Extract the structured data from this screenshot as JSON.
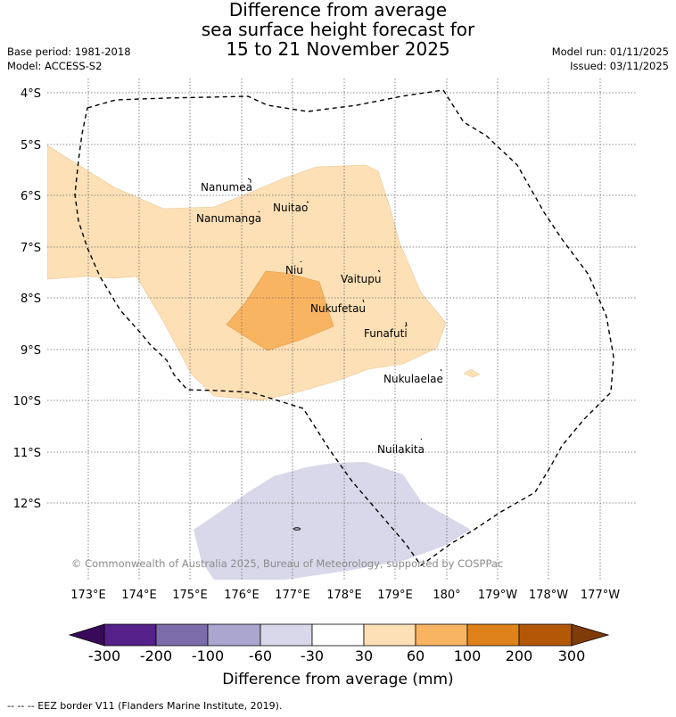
{
  "header": {
    "title_lines": [
      "Difference from average",
      "sea surface height forecast for",
      "15 to 21 November 2025"
    ],
    "base_period": "Base period: 1981-2018",
    "model": "Model: ACCESS-S2",
    "model_run": "Model run: 01/11/2025",
    "issued": "Issued: 03/11/2025"
  },
  "map": {
    "lat_labels": [
      "4°S",
      "5°S",
      "6°S",
      "7°S",
      "8°S",
      "9°S",
      "10°S",
      "11°S",
      "12°S"
    ],
    "lon_labels": [
      "173°E",
      "174°E",
      "175°E",
      "176°E",
      "177°E",
      "178°E",
      "179°E",
      "180°",
      "179°W",
      "178°W",
      "177°W"
    ],
    "islands": [
      "Nanumea",
      "Nuitao",
      "Nanumanga",
      "Niu",
      "Vaitupu",
      "Nukufetau",
      "Funafuti",
      "Nukulaelae",
      "Nuilakita"
    ],
    "copyright": "© Commonwealth of Australia 2025, Bureau of Meteorology, supported by COSPPac"
  },
  "colorbar": {
    "tick_labels": [
      "-300",
      "-200",
      "-100",
      "-60",
      "-30",
      "30",
      "60",
      "100",
      "200",
      "300"
    ],
    "title": "Difference from average (mm)",
    "colors": [
      "#3a0a5a",
      "#54208a",
      "#7d6caa",
      "#aba6cf",
      "#d8d8ea",
      "#ffffff",
      "#fde0b6",
      "#f9b462",
      "#e0821a",
      "#b35806",
      "#7f3b08"
    ]
  },
  "legend": {
    "eez_note": "--  --  -- EEZ border V11 (Flanders Marine Institute, 2019)."
  }
}
